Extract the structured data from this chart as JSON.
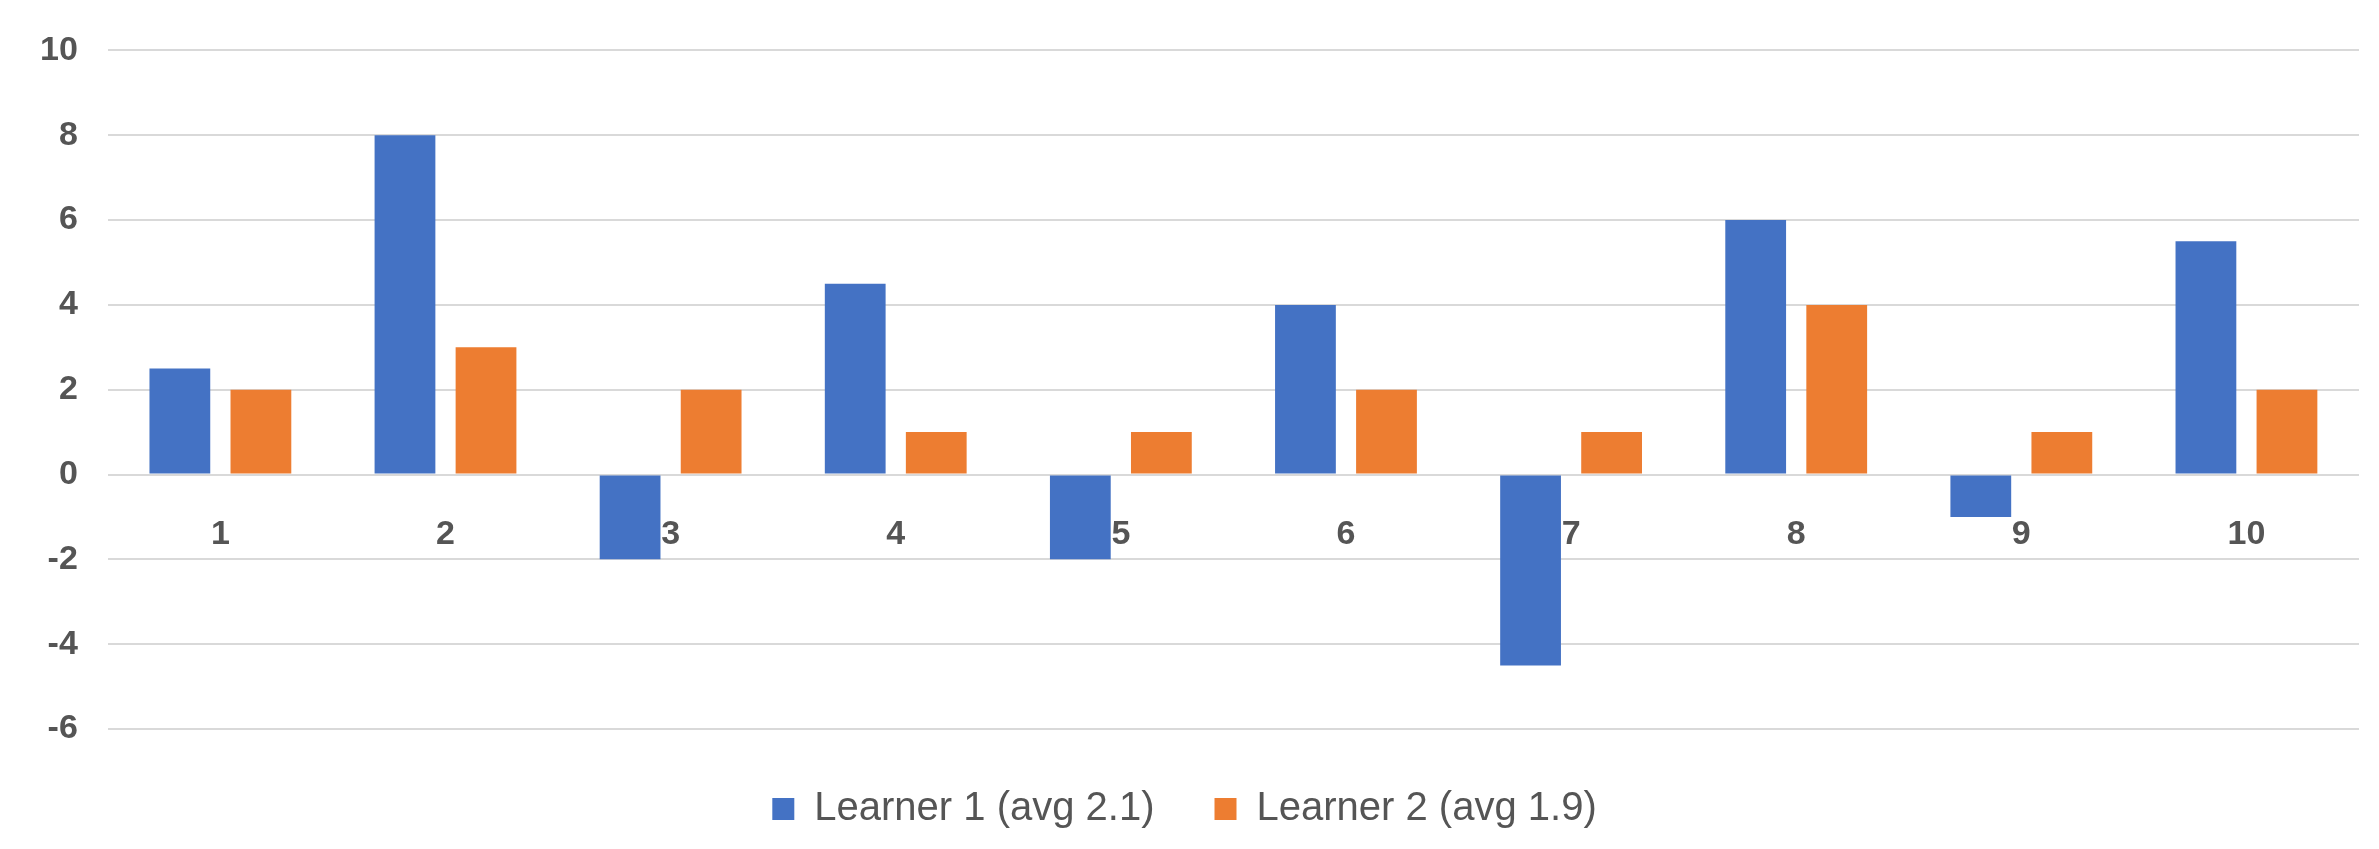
{
  "chart_data": {
    "type": "bar",
    "categories": [
      "1",
      "2",
      "3",
      "4",
      "5",
      "6",
      "7",
      "8",
      "9",
      "10"
    ],
    "series": [
      {
        "name": "Learner 1 (avg 2.1)",
        "color": "#4472c4",
        "values": [
          2.5,
          8,
          -2,
          4.5,
          -2,
          4,
          -4.5,
          6,
          -1,
          5.5
        ]
      },
      {
        "name": "Learner 2 (avg 1.9)",
        "color": "#ed7d31",
        "values": [
          2,
          3,
          2,
          1,
          1,
          2,
          1,
          4,
          1,
          2
        ]
      }
    ],
    "ylim": [
      -6,
      10
    ],
    "yticks": [
      -6,
      -4,
      -2,
      0,
      2,
      4,
      6,
      8,
      10
    ],
    "grid": "y",
    "legend": "bottom"
  }
}
